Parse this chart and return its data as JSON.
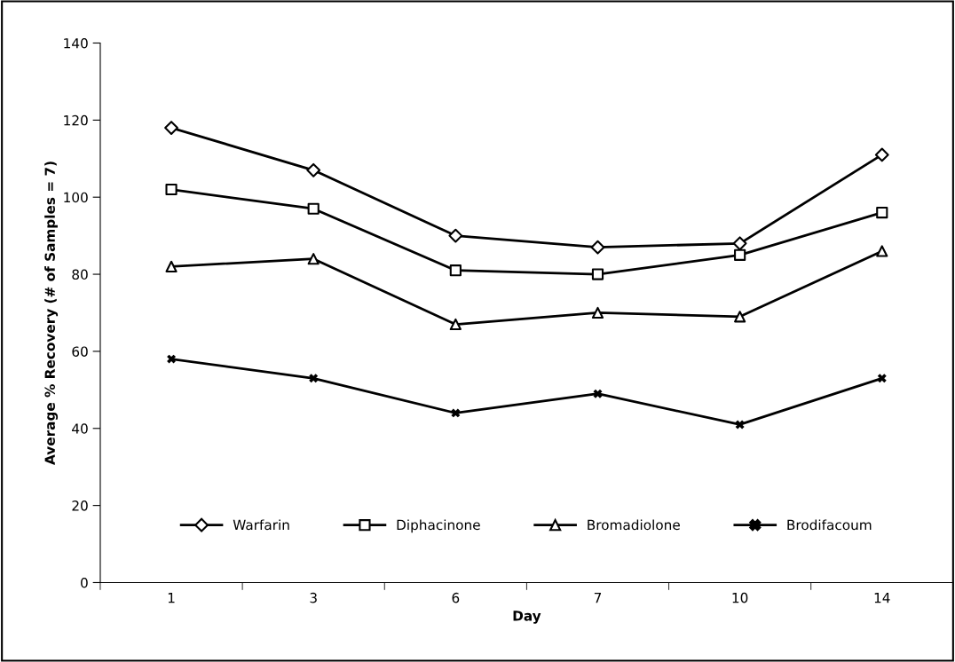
{
  "chart_data": {
    "type": "line",
    "xlabel": "Day",
    "ylabel": "Average % Recovery (# of Samples = 7)",
    "categories": [
      "1",
      "3",
      "6",
      "7",
      "10",
      "14"
    ],
    "ylim": [
      0,
      140
    ],
    "yticks": [
      0,
      20,
      40,
      60,
      80,
      100,
      120,
      140
    ],
    "grid": false,
    "legend": "bottom",
    "line_style": "solid",
    "series": [
      {
        "name": "Warfarin",
        "color": "#000000",
        "marker": "diamond",
        "values": [
          118,
          107,
          90,
          87,
          88,
          111
        ]
      },
      {
        "name": "Diphacinone",
        "color": "#000000",
        "marker": "square",
        "values": [
          102,
          97,
          81,
          80,
          85,
          96
        ]
      },
      {
        "name": "Bromadiolone",
        "color": "#000000",
        "marker": "triangle",
        "values": [
          82,
          84,
          67,
          70,
          69,
          86
        ]
      },
      {
        "name": "Brodifacoum",
        "color": "#000000",
        "marker": "cross",
        "values": [
          58,
          53,
          44,
          49,
          41,
          53
        ]
      }
    ]
  }
}
